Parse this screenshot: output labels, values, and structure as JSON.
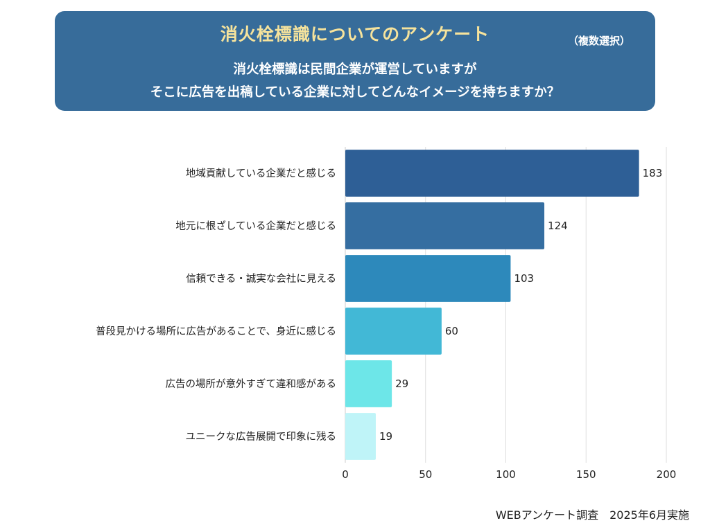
{
  "header": {
    "title": "消火栓標識についてのアンケート",
    "note": "（複数選択）",
    "question_line1": "消火栓標識は民間企業が運営していますが",
    "question_line2": "そこに広告を出稿している企業に対してどんなイメージを持ちますか？",
    "bg_color": "#376c9a",
    "title_color": "#f6e39c"
  },
  "chart_data": {
    "type": "bar",
    "orientation": "horizontal",
    "categories": [
      "地域貢献している企業だと感じる",
      "地元に根ざしている企業だと感じる",
      "信頼できる・誠実な会社に見える",
      "普段見かける場所に広告があることで、身近に感じる",
      "広告の場所が意外すぎて違和感がある",
      "ユニークな広告展開で印象に残る"
    ],
    "values": [
      183,
      124,
      103,
      60,
      29,
      19
    ],
    "colors": [
      "#2e5f96",
      "#356ea1",
      "#2d89bb",
      "#42b8d6",
      "#6de6e8",
      "#bff4f8"
    ],
    "xlim": [
      0,
      200
    ],
    "xticks": [
      0,
      50,
      100,
      150,
      200
    ],
    "grid": true,
    "title": "",
    "xlabel": "",
    "ylabel": ""
  },
  "footer": {
    "source": "WEBアンケート調査　2025年6月実施"
  }
}
